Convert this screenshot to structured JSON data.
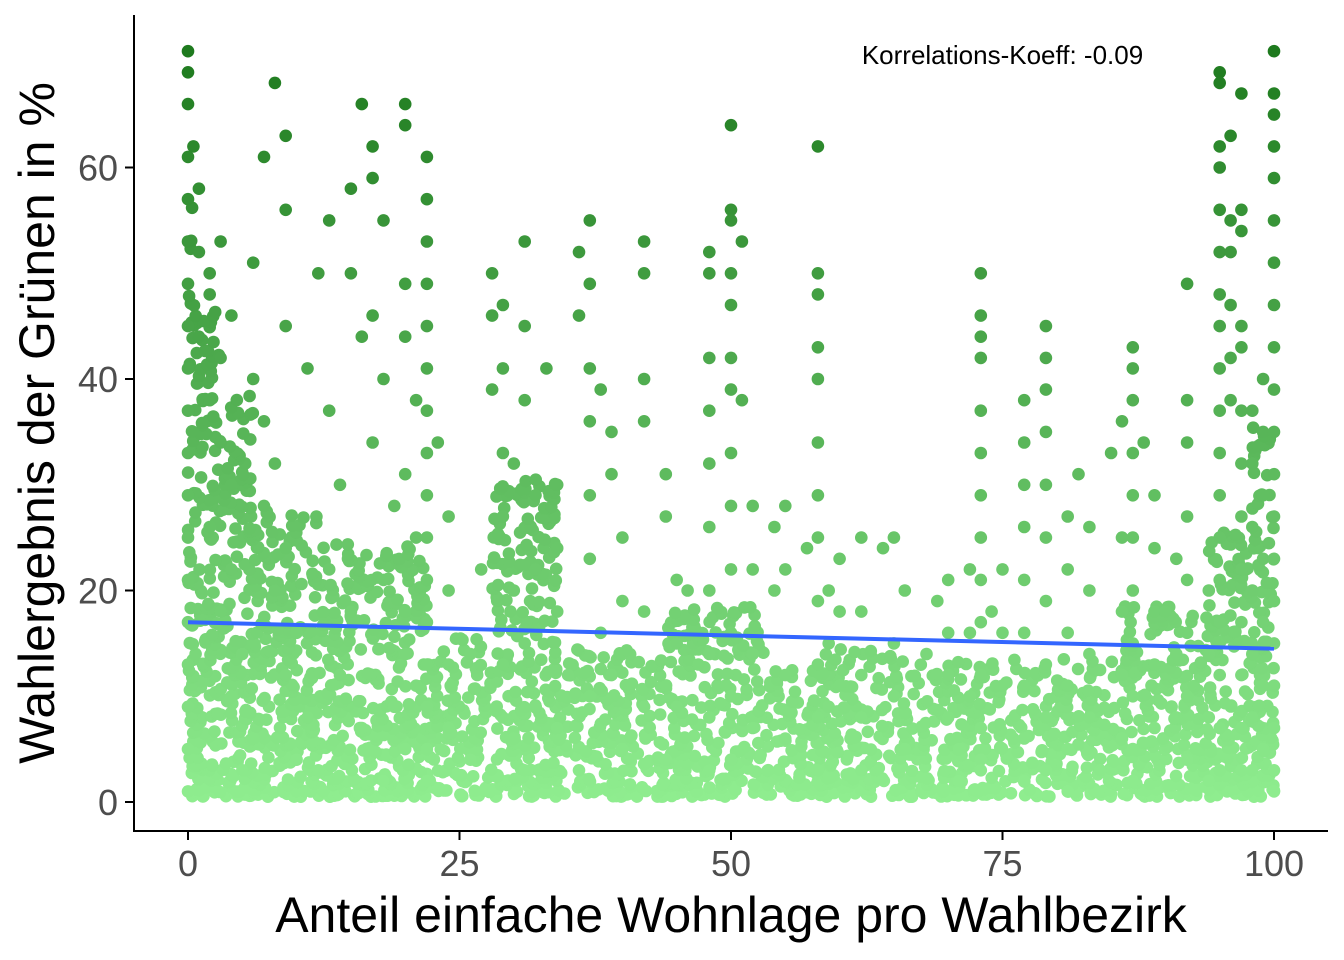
{
  "chart_data": {
    "type": "scatter",
    "title": "",
    "xlabel": "Anteil einfache Wohnlage pro Wahlbezirk",
    "ylabel": "Wahlergebnis der Grünen in %",
    "xlim": [
      -5,
      105
    ],
    "ylim": [
      -3,
      74
    ],
    "x_ticks": [
      0,
      25,
      50,
      75,
      100
    ],
    "x_tick_labels": [
      "0",
      "25",
      "50",
      "75",
      "100"
    ],
    "y_ticks": [
      0,
      20,
      40,
      60
    ],
    "y_tick_labels": [
      "0",
      "20",
      "40",
      "60"
    ],
    "grid": false,
    "legend": "none",
    "annotation": {
      "text": "Korrelations-Koeff: -0.09",
      "x": 75,
      "y": 70
    },
    "regression": {
      "x": [
        0,
        100
      ],
      "y": [
        17.0,
        14.5
      ],
      "color": "#3366FF"
    },
    "color_scale": {
      "low": "#90EE90",
      "high": "#1E7A1E",
      "domain": [
        0,
        71
      ]
    },
    "points": [
      [
        0,
        1
      ],
      [
        0,
        5
      ],
      [
        0,
        9
      ],
      [
        0,
        13
      ],
      [
        0,
        17
      ],
      [
        0,
        21
      ],
      [
        0,
        25
      ],
      [
        0,
        29
      ],
      [
        0,
        33
      ],
      [
        0,
        37
      ],
      [
        0,
        41
      ],
      [
        0,
        45
      ],
      [
        0,
        49
      ],
      [
        0,
        53
      ],
      [
        0,
        57
      ],
      [
        0,
        61
      ],
      [
        0,
        66
      ],
      [
        0,
        69
      ],
      [
        0,
        71
      ],
      [
        0.5,
        62
      ],
      [
        1,
        58
      ],
      [
        1,
        52
      ],
      [
        2,
        50
      ],
      [
        2,
        48
      ],
      [
        1,
        44
      ],
      [
        3,
        42
      ],
      [
        2,
        38
      ],
      [
        3,
        34
      ],
      [
        4,
        30
      ],
      [
        2,
        26
      ],
      [
        4,
        22
      ],
      [
        3,
        18
      ],
      [
        5,
        14
      ],
      [
        4,
        10
      ],
      [
        6,
        6
      ],
      [
        5,
        3
      ],
      [
        3,
        53
      ],
      [
        4,
        46
      ],
      [
        6,
        51
      ],
      [
        6,
        40
      ],
      [
        7,
        36
      ],
      [
        8,
        32
      ],
      [
        7,
        28
      ],
      [
        9,
        24
      ],
      [
        8,
        20
      ],
      [
        10,
        16
      ],
      [
        9,
        12
      ],
      [
        11,
        8
      ],
      [
        10,
        4
      ],
      [
        8,
        68
      ],
      [
        7,
        61
      ],
      [
        9,
        56
      ],
      [
        9,
        63
      ],
      [
        9,
        45
      ],
      [
        11,
        41
      ],
      [
        12,
        50
      ],
      [
        13,
        37
      ],
      [
        14,
        30
      ],
      [
        13,
        22
      ],
      [
        15,
        18
      ],
      [
        14,
        12
      ],
      [
        16,
        7
      ],
      [
        12,
        3
      ],
      [
        13,
        55
      ],
      [
        15,
        58
      ],
      [
        15,
        50
      ],
      [
        16,
        44
      ],
      [
        16,
        66
      ],
      [
        17,
        62
      ],
      [
        17,
        59
      ],
      [
        18,
        55
      ],
      [
        17,
        46
      ],
      [
        18,
        40
      ],
      [
        17,
        34
      ],
      [
        19,
        28
      ],
      [
        18,
        21
      ],
      [
        20,
        14
      ],
      [
        19,
        9
      ],
      [
        18,
        2
      ],
      [
        20,
        66
      ],
      [
        20,
        64
      ],
      [
        20,
        49
      ],
      [
        20,
        44
      ],
      [
        21,
        38
      ],
      [
        20,
        31
      ],
      [
        21,
        25
      ],
      [
        20,
        18
      ],
      [
        21,
        11
      ],
      [
        20,
        5
      ],
      [
        22,
        61
      ],
      [
        22,
        57
      ],
      [
        22,
        53
      ],
      [
        22,
        49
      ],
      [
        22,
        45
      ],
      [
        22,
        41
      ],
      [
        22,
        37
      ],
      [
        22,
        33
      ],
      [
        22,
        29
      ],
      [
        22,
        25
      ],
      [
        22,
        21
      ],
      [
        22,
        17
      ],
      [
        22,
        13
      ],
      [
        22,
        9
      ],
      [
        22,
        5
      ],
      [
        22,
        2
      ],
      [
        23,
        34
      ],
      [
        24,
        27
      ],
      [
        24,
        20
      ],
      [
        24,
        13
      ],
      [
        24,
        7
      ],
      [
        26,
        4
      ],
      [
        26,
        14
      ],
      [
        27,
        22
      ],
      [
        28,
        50
      ],
      [
        28,
        46
      ],
      [
        28,
        39
      ],
      [
        29,
        47
      ],
      [
        29,
        41
      ],
      [
        29,
        33
      ],
      [
        29,
        27
      ],
      [
        30,
        20
      ],
      [
        29,
        13
      ],
      [
        30,
        6
      ],
      [
        31,
        53
      ],
      [
        31,
        45
      ],
      [
        31,
        38
      ],
      [
        30,
        32
      ],
      [
        32,
        29
      ],
      [
        32,
        22
      ],
      [
        31,
        15
      ],
      [
        32,
        9
      ],
      [
        31,
        3
      ],
      [
        33,
        41
      ],
      [
        34,
        30
      ],
      [
        34,
        24
      ],
      [
        34,
        18
      ],
      [
        35,
        12
      ],
      [
        34,
        7
      ],
      [
        36,
        52
      ],
      [
        36,
        46
      ],
      [
        37,
        55
      ],
      [
        37,
        49
      ],
      [
        37,
        41
      ],
      [
        37,
        36
      ],
      [
        37,
        29
      ],
      [
        37,
        23
      ],
      [
        38,
        16
      ],
      [
        37,
        10
      ],
      [
        36,
        3
      ],
      [
        38,
        39
      ],
      [
        39,
        35
      ],
      [
        39,
        31
      ],
      [
        40,
        25
      ],
      [
        40,
        19
      ],
      [
        39,
        12
      ],
      [
        40,
        5
      ],
      [
        42,
        53
      ],
      [
        42,
        50
      ],
      [
        42,
        40
      ],
      [
        42,
        36
      ],
      [
        42,
        18
      ],
      [
        42,
        9
      ],
      [
        44,
        31
      ],
      [
        44,
        27
      ],
      [
        45,
        21
      ],
      [
        45,
        15
      ],
      [
        45,
        9
      ],
      [
        44,
        4
      ],
      [
        46,
        20
      ],
      [
        47,
        13
      ],
      [
        48,
        52
      ],
      [
        48,
        50
      ],
      [
        48,
        42
      ],
      [
        48,
        37
      ],
      [
        48,
        32
      ],
      [
        48,
        26
      ],
      [
        48,
        20
      ],
      [
        48,
        14
      ],
      [
        48,
        8
      ],
      [
        48,
        3
      ],
      [
        50,
        64
      ],
      [
        50,
        56
      ],
      [
        50,
        55
      ],
      [
        50,
        50
      ],
      [
        50,
        47
      ],
      [
        50,
        42
      ],
      [
        50,
        39
      ],
      [
        50,
        33
      ],
      [
        50,
        28
      ],
      [
        50,
        22
      ],
      [
        50,
        16
      ],
      [
        50,
        10
      ],
      [
        50,
        4
      ],
      [
        51,
        53
      ],
      [
        51,
        38
      ],
      [
        52,
        28
      ],
      [
        52,
        22
      ],
      [
        52,
        14
      ],
      [
        52,
        7
      ],
      [
        54,
        26
      ],
      [
        54,
        20
      ],
      [
        55,
        28
      ],
      [
        55,
        22
      ],
      [
        55,
        12
      ],
      [
        55,
        6
      ],
      [
        57,
        24
      ],
      [
        58,
        62
      ],
      [
        58,
        50
      ],
      [
        58,
        48
      ],
      [
        58,
        43
      ],
      [
        58,
        40
      ],
      [
        58,
        34
      ],
      [
        58,
        29
      ],
      [
        58,
        25
      ],
      [
        58,
        19
      ],
      [
        58,
        13
      ],
      [
        58,
        8
      ],
      [
        58,
        3
      ],
      [
        59,
        20
      ],
      [
        59,
        15
      ],
      [
        59,
        9
      ],
      [
        60,
        23
      ],
      [
        60,
        18
      ],
      [
        60,
        11
      ],
      [
        61,
        6
      ],
      [
        62,
        25
      ],
      [
        62,
        18
      ],
      [
        62,
        12
      ],
      [
        62,
        8
      ],
      [
        62,
        3
      ],
      [
        64,
        24
      ],
      [
        65,
        25
      ],
      [
        66,
        20
      ],
      [
        65,
        15
      ],
      [
        65,
        10
      ],
      [
        66,
        5
      ],
      [
        68,
        14
      ],
      [
        69,
        19
      ],
      [
        70,
        21
      ],
      [
        70,
        16
      ],
      [
        70,
        12
      ],
      [
        70,
        8
      ],
      [
        71,
        2
      ],
      [
        71,
        5
      ],
      [
        72,
        22
      ],
      [
        72,
        16
      ],
      [
        72,
        10
      ],
      [
        73,
        4
      ],
      [
        73,
        50
      ],
      [
        73,
        46
      ],
      [
        73,
        44
      ],
      [
        73,
        42
      ],
      [
        73,
        37
      ],
      [
        73,
        33
      ],
      [
        73,
        29
      ],
      [
        73,
        25
      ],
      [
        73,
        21
      ],
      [
        73,
        17
      ],
      [
        73,
        12
      ],
      [
        73,
        7
      ],
      [
        73,
        3
      ],
      [
        74,
        18
      ],
      [
        75,
        22
      ],
      [
        75,
        16
      ],
      [
        75,
        11
      ],
      [
        76,
        6
      ],
      [
        77,
        38
      ],
      [
        77,
        34
      ],
      [
        77,
        30
      ],
      [
        77,
        26
      ],
      [
        77,
        21
      ],
      [
        77,
        16
      ],
      [
        77,
        11
      ],
      [
        77,
        6
      ],
      [
        77,
        2
      ],
      [
        79,
        45
      ],
      [
        79,
        42
      ],
      [
        79,
        39
      ],
      [
        79,
        35
      ],
      [
        79,
        30
      ],
      [
        79,
        25
      ],
      [
        79,
        19
      ],
      [
        79,
        13
      ],
      [
        79,
        8
      ],
      [
        79,
        3
      ],
      [
        81,
        27
      ],
      [
        81,
        22
      ],
      [
        81,
        16
      ],
      [
        81,
        11
      ],
      [
        81,
        5
      ],
      [
        81,
        1
      ],
      [
        82,
        31
      ],
      [
        83,
        26
      ],
      [
        83,
        20
      ],
      [
        83,
        14
      ],
      [
        83,
        8
      ],
      [
        84,
        3
      ],
      [
        85,
        33
      ],
      [
        86,
        25
      ],
      [
        86,
        36
      ],
      [
        86,
        18
      ],
      [
        86,
        12
      ],
      [
        86,
        6
      ],
      [
        87,
        43
      ],
      [
        87,
        41
      ],
      [
        87,
        38
      ],
      [
        87,
        33
      ],
      [
        87,
        29
      ],
      [
        87,
        25
      ],
      [
        87,
        20
      ],
      [
        87,
        15
      ],
      [
        87,
        10
      ],
      [
        87,
        5
      ],
      [
        87,
        2
      ],
      [
        88,
        34
      ],
      [
        89,
        29
      ],
      [
        89,
        24
      ],
      [
        89,
        18
      ],
      [
        89,
        13
      ],
      [
        89,
        7
      ],
      [
        90,
        18
      ],
      [
        91,
        23
      ],
      [
        91,
        14
      ],
      [
        91,
        8
      ],
      [
        92,
        49
      ],
      [
        92,
        38
      ],
      [
        92,
        34
      ],
      [
        92,
        27
      ],
      [
        92,
        21
      ],
      [
        92,
        16
      ],
      [
        92,
        10
      ],
      [
        92,
        4
      ],
      [
        94,
        20
      ],
      [
        94,
        14
      ],
      [
        94,
        8
      ],
      [
        94,
        2
      ],
      [
        95,
        69
      ],
      [
        95,
        68
      ],
      [
        95,
        62
      ],
      [
        95,
        60
      ],
      [
        95,
        56
      ],
      [
        95,
        52
      ],
      [
        95,
        48
      ],
      [
        95,
        45
      ],
      [
        95,
        41
      ],
      [
        95,
        37
      ],
      [
        95,
        33
      ],
      [
        95,
        29
      ],
      [
        95,
        25
      ],
      [
        95,
        21
      ],
      [
        95,
        17
      ],
      [
        95,
        12
      ],
      [
        95,
        7
      ],
      [
        95,
        3
      ],
      [
        96,
        63
      ],
      [
        96,
        55
      ],
      [
        96,
        52
      ],
      [
        96,
        47
      ],
      [
        96,
        42
      ],
      [
        96,
        38
      ],
      [
        97,
        67
      ],
      [
        97,
        56
      ],
      [
        97,
        54
      ],
      [
        97,
        45
      ],
      [
        97,
        43
      ],
      [
        97,
        37
      ],
      [
        97,
        32
      ],
      [
        97,
        27
      ],
      [
        97,
        22
      ],
      [
        97,
        17
      ],
      [
        97,
        12
      ],
      [
        97,
        7
      ],
      [
        97,
        3
      ],
      [
        98,
        37
      ],
      [
        98,
        32
      ],
      [
        98,
        26
      ],
      [
        98,
        20
      ],
      [
        98,
        14
      ],
      [
        98,
        8
      ],
      [
        98,
        3
      ],
      [
        99,
        40
      ],
      [
        99,
        35
      ],
      [
        99,
        29
      ],
      [
        99,
        23
      ],
      [
        99,
        17
      ],
      [
        99,
        11
      ],
      [
        99,
        5
      ],
      [
        100,
        71
      ],
      [
        100,
        67
      ],
      [
        100,
        65
      ],
      [
        100,
        62
      ],
      [
        100,
        59
      ],
      [
        100,
        55
      ],
      [
        100,
        51
      ],
      [
        100,
        47
      ],
      [
        100,
        43
      ],
      [
        100,
        39
      ],
      [
        100,
        35
      ],
      [
        100,
        31
      ],
      [
        100,
        27
      ],
      [
        100,
        23
      ],
      [
        100,
        19
      ],
      [
        100,
        15
      ],
      [
        100,
        11
      ],
      [
        100,
        7
      ],
      [
        100,
        3
      ],
      [
        100,
        1
      ]
    ],
    "dense_bands": [
      {
        "x": [
          0,
          0.6
        ],
        "y_max": 56
      },
      {
        "x": [
          0.6,
          3
        ],
        "y_max": 46
      },
      {
        "x": [
          3,
          6
        ],
        "y_max": 38
      },
      {
        "x": [
          6,
          12
        ],
        "y_max": 28
      },
      {
        "x": [
          12,
          22
        ],
        "y_max": 24
      },
      {
        "x": [
          22,
          28
        ],
        "y_max": 15
      },
      {
        "x": [
          28,
          34
        ],
        "y_max": 30
      },
      {
        "x": [
          34,
          44
        ],
        "y_max": 14
      },
      {
        "x": [
          44,
          53
        ],
        "y_max": 18
      },
      {
        "x": [
          53,
          58
        ],
        "y_max": 12
      },
      {
        "x": [
          58,
          66
        ],
        "y_max": 14
      },
      {
        "x": [
          66,
          86
        ],
        "y_max": 13
      },
      {
        "x": [
          86,
          94
        ],
        "y_max": 18
      },
      {
        "x": [
          94,
          98
        ],
        "y_max": 25
      },
      {
        "x": [
          98,
          100
        ],
        "y_max": 35
      }
    ]
  }
}
